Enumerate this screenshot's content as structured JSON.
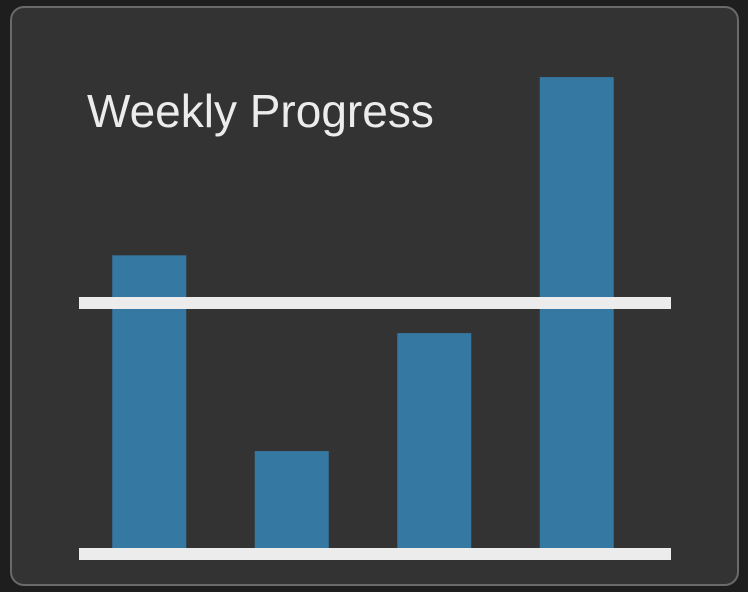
{
  "chart_data": {
    "type": "bar",
    "title": "Weekly Progress",
    "categories": [
      null,
      null,
      null,
      null
    ],
    "values": [
      119,
      41,
      88,
      190
    ],
    "color": "#3579a3",
    "goal": 100,
    "ylim": [
      0,
      200
    ]
  }
}
